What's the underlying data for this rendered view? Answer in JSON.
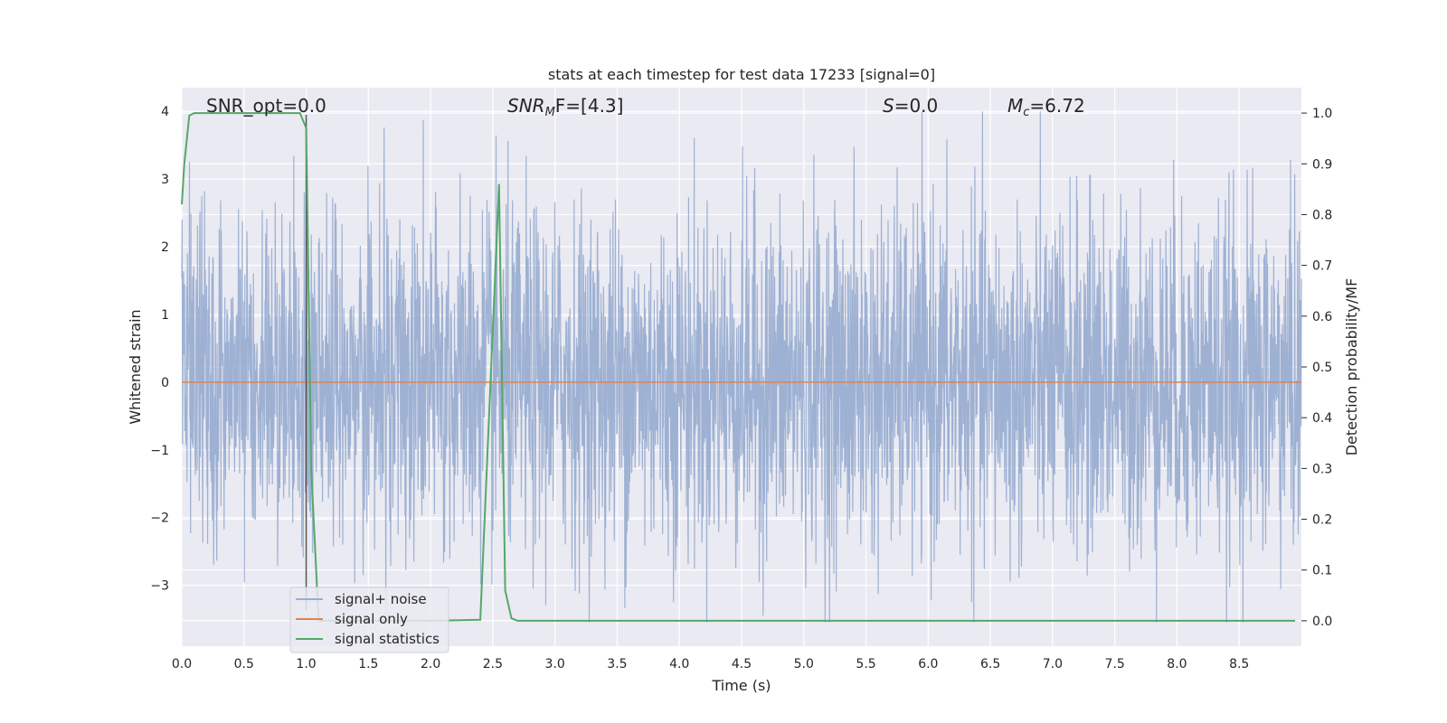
{
  "chart_data": {
    "type": "line",
    "title": "stats at each timestep for test data 17233 [signal=0]",
    "xlabel": "Time (s)",
    "ylabel_left": "Whitened strain",
    "ylabel_right": "Detection probability/MF",
    "xlim": [
      0.0,
      9.0
    ],
    "ylim_left": [
      -3.9,
      4.35
    ],
    "ylim_right": [
      -0.05,
      1.05
    ],
    "xticks": [
      0.0,
      0.5,
      1.0,
      1.5,
      2.0,
      2.5,
      3.0,
      3.5,
      4.0,
      4.5,
      5.0,
      5.5,
      6.0,
      6.5,
      7.0,
      7.5,
      8.0,
      8.5
    ],
    "xtick_labels": [
      "0.0",
      "0.5",
      "1.0",
      "1.5",
      "2.0",
      "2.5",
      "3.0",
      "3.5",
      "4.0",
      "4.5",
      "5.0",
      "5.5",
      "6.0",
      "6.5",
      "7.0",
      "7.5",
      "8.0",
      "8.5"
    ],
    "yticks_left": [
      -3,
      -2,
      -1,
      0,
      1,
      2,
      3,
      4
    ],
    "ytick_labels_left": [
      "−3",
      "−2",
      "−1",
      "0",
      "1",
      "2",
      "3",
      "4"
    ],
    "yticks_right": [
      0.0,
      0.1,
      0.2,
      0.3,
      0.4,
      0.5,
      0.6,
      0.7,
      0.8,
      0.9,
      1.0
    ],
    "ytick_labels_right": [
      "0.0",
      "0.1",
      "0.2",
      "0.3",
      "0.4",
      "0.5",
      "0.6",
      "0.7",
      "0.8",
      "0.9",
      "1.0"
    ],
    "grid": true,
    "legend_position": "lower-left",
    "annotations": {
      "snr_opt": "SNR_opt=0.0",
      "snr_mf_main": "SNR",
      "snr_mf_sub": "M",
      "snr_mf_rest": "F=[4.3]",
      "s_var": "S",
      "s_value": "=0.0",
      "mc_var": "M",
      "mc_sub": "c",
      "mc_value": "=6.72"
    },
    "vertical_marker_x": 1.0,
    "series": [
      {
        "name": "signal+ noise",
        "axis": "left",
        "color": "#9aaed1",
        "style": "noise",
        "noise_envelope": {
          "typical_abs": 1.7,
          "peak_max": 4.0,
          "peak_min": -3.55
        }
      },
      {
        "name": "signal only",
        "axis": "left",
        "color": "#dd8452",
        "x": [
          0.0,
          9.0
        ],
        "y": [
          0.0,
          0.0
        ]
      },
      {
        "name": "signal statistics",
        "axis": "right",
        "color": "#55a868",
        "x": [
          0.0,
          0.02,
          0.06,
          0.1,
          0.2,
          0.5,
          0.7,
          0.9,
          0.95,
          1.0,
          1.04,
          1.1,
          1.5,
          2.0,
          2.4,
          2.55,
          2.6,
          2.65,
          2.7,
          3.0,
          5.0,
          7.0,
          8.95
        ],
        "y": [
          0.82,
          0.9,
          0.995,
          1.0,
          1.0,
          1.0,
          1.0,
          1.0,
          1.0,
          0.97,
          0.3,
          0.0,
          0.0,
          0.0,
          0.002,
          0.86,
          0.06,
          0.005,
          0.0,
          0.0,
          0.0,
          0.0,
          0.0
        ]
      }
    ],
    "colors": {
      "background": "#eaeaf2",
      "grid": "#ffffff",
      "noise": "#9aaed1",
      "signal_only": "#dd8452",
      "statistics": "#55a868",
      "marker": "#555555"
    }
  }
}
